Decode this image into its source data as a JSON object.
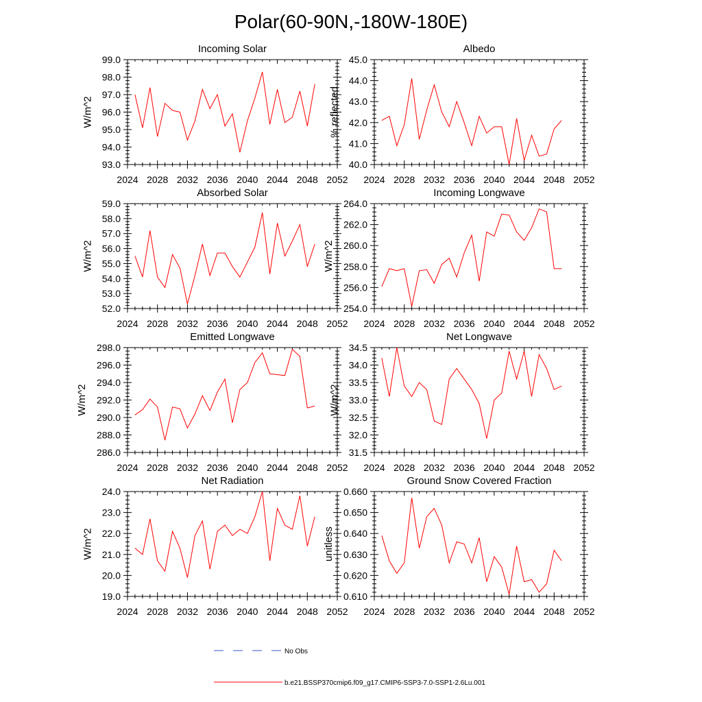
{
  "figure": {
    "title": "Polar(60-90N,-180W-180E)",
    "legend": {
      "obs_label": "No Obs",
      "obs_color": "#3a56c4",
      "model_label": "b.e21.BSSP370cmip6.f09_g17.CMIP6-SSP3-7.0-SSP1-2.6Lu.001",
      "model_color": "#ff0000"
    }
  },
  "chart_data": [
    {
      "type": "line",
      "title": "Incoming Solar",
      "ylabel": "W/m^2",
      "xlim": [
        2024,
        2052
      ],
      "ylim": [
        93.0,
        99.0
      ],
      "xticks": [
        "2024",
        "2028",
        "2032",
        "2036",
        "2040",
        "2044",
        "2048",
        "2052"
      ],
      "yticks": [
        "93.0",
        "94.0",
        "95.0",
        "96.0",
        "97.0",
        "98.0",
        "99.0"
      ],
      "x": [
        2025,
        2026,
        2027,
        2028,
        2029,
        2030,
        2031,
        2032,
        2033,
        2034,
        2035,
        2036,
        2037,
        2038,
        2039,
        2040,
        2041,
        2042,
        2043,
        2044,
        2045,
        2046,
        2047,
        2048,
        2049
      ],
      "values": [
        97.0,
        95.1,
        97.4,
        94.6,
        96.5,
        96.1,
        96.0,
        94.4,
        95.5,
        97.3,
        96.2,
        97.0,
        95.2,
        95.9,
        93.7,
        95.5,
        96.8,
        98.3,
        95.3,
        97.3,
        95.4,
        95.7,
        97.2,
        95.2,
        97.6
      ]
    },
    {
      "type": "line",
      "title": "Albedo",
      "ylabel": "% reflected",
      "xlim": [
        2024,
        2052
      ],
      "ylim": [
        40.0,
        45.0
      ],
      "xticks": [
        "2024",
        "2028",
        "2032",
        "2036",
        "2040",
        "2044",
        "2048",
        "2052"
      ],
      "yticks": [
        "40.0",
        "41.0",
        "42.0",
        "43.0",
        "44.0",
        "45.0"
      ],
      "x": [
        2025,
        2026,
        2027,
        2028,
        2029,
        2030,
        2031,
        2032,
        2033,
        2034,
        2035,
        2036,
        2037,
        2038,
        2039,
        2040,
        2041,
        2042,
        2043,
        2044,
        2045,
        2046,
        2047,
        2048,
        2049
      ],
      "values": [
        42.1,
        42.3,
        40.9,
        41.9,
        44.1,
        41.2,
        42.6,
        43.8,
        42.5,
        41.8,
        43.0,
        42.0,
        40.9,
        42.3,
        41.5,
        41.8,
        41.8,
        40.0,
        42.2,
        40.2,
        41.4,
        40.4,
        40.5,
        41.7,
        42.1
      ]
    },
    {
      "type": "line",
      "title": "Absorbed Solar",
      "ylabel": "W/m^2",
      "xlim": [
        2024,
        2052
      ],
      "ylim": [
        52.0,
        59.0
      ],
      "xticks": [
        "2024",
        "2028",
        "2032",
        "2036",
        "2040",
        "2044",
        "2048",
        "2052"
      ],
      "yticks": [
        "52.0",
        "53.0",
        "54.0",
        "55.0",
        "56.0",
        "57.0",
        "58.0",
        "59.0"
      ],
      "x": [
        2025,
        2026,
        2027,
        2028,
        2029,
        2030,
        2031,
        2032,
        2033,
        2034,
        2035,
        2036,
        2037,
        2038,
        2039,
        2040,
        2041,
        2042,
        2043,
        2044,
        2045,
        2046,
        2047,
        2048,
        2049
      ],
      "values": [
        55.5,
        54.1,
        57.2,
        54.1,
        53.4,
        55.6,
        54.7,
        52.3,
        54.2,
        56.3,
        54.2,
        55.7,
        55.7,
        54.8,
        54.1,
        55.1,
        56.1,
        58.4,
        54.3,
        57.7,
        55.5,
        56.5,
        57.6,
        54.8,
        56.3
      ]
    },
    {
      "type": "line",
      "title": "Incoming Longwave",
      "ylabel": "W/m^2",
      "xlim": [
        2024,
        2052
      ],
      "ylim": [
        254.0,
        264.0
      ],
      "xticks": [
        "2024",
        "2028",
        "2032",
        "2036",
        "2040",
        "2044",
        "2048",
        "2052"
      ],
      "yticks": [
        "254.0",
        "256.0",
        "258.0",
        "260.0",
        "262.0",
        "264.0"
      ],
      "x": [
        2025,
        2026,
        2027,
        2028,
        2029,
        2030,
        2031,
        2032,
        2033,
        2034,
        2035,
        2036,
        2037,
        2038,
        2039,
        2040,
        2041,
        2042,
        2043,
        2044,
        2045,
        2046,
        2047,
        2048,
        2049
      ],
      "values": [
        256.1,
        257.8,
        257.6,
        257.8,
        254.2,
        257.6,
        257.7,
        256.4,
        258.2,
        258.8,
        257.0,
        259.3,
        261.0,
        256.6,
        261.3,
        260.9,
        263.0,
        262.9,
        261.3,
        260.5,
        261.7,
        263.5,
        263.2,
        257.8,
        257.8
      ]
    },
    {
      "type": "line",
      "title": "Emitted Longwave",
      "ylabel": "W/m^2",
      "xlim": [
        2024,
        2052
      ],
      "ylim": [
        286.0,
        298.0
      ],
      "xticks": [
        "2024",
        "2028",
        "2032",
        "2036",
        "2040",
        "2044",
        "2048",
        "2052"
      ],
      "yticks": [
        "286.0",
        "288.0",
        "290.0",
        "292.0",
        "294.0",
        "296.0",
        "298.0"
      ],
      "x": [
        2025,
        2026,
        2027,
        2028,
        2029,
        2030,
        2031,
        2032,
        2033,
        2034,
        2035,
        2036,
        2037,
        2038,
        2039,
        2040,
        2041,
        2042,
        2043,
        2044,
        2045,
        2046,
        2047,
        2048,
        2049
      ],
      "values": [
        290.3,
        290.9,
        292.1,
        291.2,
        287.4,
        291.2,
        291.0,
        288.8,
        290.4,
        292.5,
        290.8,
        292.9,
        294.4,
        289.4,
        293.2,
        294.0,
        296.3,
        297.4,
        295.0,
        294.9,
        294.8,
        297.8,
        297.0,
        291.1,
        291.3
      ]
    },
    {
      "type": "line",
      "title": "Net Longwave",
      "ylabel": "W/m^2",
      "xlim": [
        2024,
        2052
      ],
      "ylim": [
        31.5,
        34.5
      ],
      "xticks": [
        "2024",
        "2028",
        "2032",
        "2036",
        "2040",
        "2044",
        "2048",
        "2052"
      ],
      "yticks": [
        "31.5",
        "32.0",
        "32.5",
        "33.0",
        "33.5",
        "34.0",
        "34.5"
      ],
      "x": [
        2025,
        2026,
        2027,
        2028,
        2029,
        2030,
        2031,
        2032,
        2033,
        2034,
        2035,
        2036,
        2037,
        2038,
        2039,
        2040,
        2041,
        2042,
        2043,
        2044,
        2045,
        2046,
        2047,
        2048,
        2049
      ],
      "values": [
        34.2,
        33.1,
        34.5,
        33.4,
        33.1,
        33.5,
        33.3,
        32.4,
        32.3,
        33.6,
        33.9,
        33.6,
        33.3,
        32.9,
        31.9,
        33.0,
        33.2,
        34.4,
        33.6,
        34.4,
        33.1,
        34.3,
        33.9,
        33.3,
        33.4
      ]
    },
    {
      "type": "line",
      "title": "Net Radiation",
      "ylabel": "W/m^2",
      "xlim": [
        2024,
        2052
      ],
      "ylim": [
        19.0,
        24.0
      ],
      "xticks": [
        "2024",
        "2028",
        "2032",
        "2036",
        "2040",
        "2044",
        "2048",
        "2052"
      ],
      "yticks": [
        "19.0",
        "20.0",
        "21.0",
        "22.0",
        "23.0",
        "24.0"
      ],
      "x": [
        2025,
        2026,
        2027,
        2028,
        2029,
        2030,
        2031,
        2032,
        2033,
        2034,
        2035,
        2036,
        2037,
        2038,
        2039,
        2040,
        2041,
        2042,
        2043,
        2044,
        2045,
        2046,
        2047,
        2048,
        2049
      ],
      "values": [
        21.3,
        21.0,
        22.7,
        20.7,
        20.2,
        22.1,
        21.3,
        19.9,
        21.9,
        22.6,
        20.3,
        22.1,
        22.4,
        21.9,
        22.2,
        22.0,
        22.8,
        24.0,
        20.7,
        23.2,
        22.4,
        22.2,
        23.8,
        21.4,
        22.8
      ]
    },
    {
      "type": "line",
      "title": "Ground Snow Covered Fraction",
      "ylabel": "unitless",
      "xlim": [
        2024,
        2052
      ],
      "ylim": [
        0.61,
        0.66
      ],
      "xticks": [
        "2024",
        "2028",
        "2032",
        "2036",
        "2040",
        "2044",
        "2048",
        "2052"
      ],
      "yticks": [
        "0.610",
        "0.620",
        "0.630",
        "0.640",
        "0.650",
        "0.660"
      ],
      "x": [
        2025,
        2026,
        2027,
        2028,
        2029,
        2030,
        2031,
        2032,
        2033,
        2034,
        2035,
        2036,
        2037,
        2038,
        2039,
        2040,
        2041,
        2042,
        2043,
        2044,
        2045,
        2046,
        2047,
        2048,
        2049
      ],
      "values": [
        0.639,
        0.627,
        0.621,
        0.626,
        0.657,
        0.633,
        0.648,
        0.652,
        0.644,
        0.626,
        0.636,
        0.635,
        0.626,
        0.638,
        0.617,
        0.629,
        0.624,
        0.611,
        0.634,
        0.617,
        0.618,
        0.612,
        0.616,
        0.632,
        0.627
      ]
    }
  ]
}
